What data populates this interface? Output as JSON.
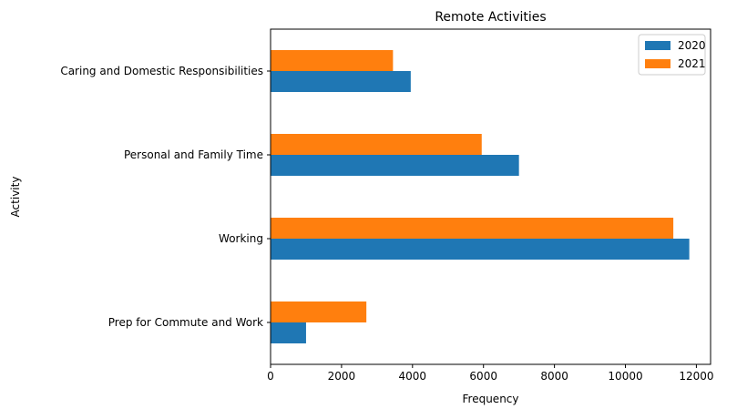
{
  "chart_data": {
    "type": "bar",
    "orientation": "horizontal",
    "title": "Remote Activities",
    "xlabel": "Frequency",
    "ylabel": "Activity",
    "categories": [
      "Prep for Commute and Work",
      "Working",
      "Personal and Family Time",
      "Caring and Domestic Responsibilities"
    ],
    "series": [
      {
        "name": "2020",
        "color": "#1f77b4",
        "values": [
          1000,
          11800,
          7000,
          3950
        ]
      },
      {
        "name": "2021",
        "color": "#ff7f0e",
        "values": [
          2700,
          11350,
          5950,
          3450
        ]
      }
    ],
    "xlim": [
      0,
      12400
    ],
    "xticks": [
      0,
      2000,
      4000,
      6000,
      8000,
      10000,
      12000
    ],
    "grid": false,
    "legend_position": "top-right"
  }
}
